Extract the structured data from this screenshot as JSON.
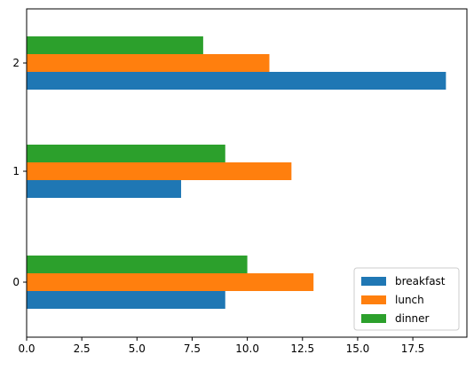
{
  "chart_data": {
    "type": "bar",
    "orientation": "horizontal",
    "title": "",
    "xlabel": "",
    "ylabel": "",
    "categories": [
      "0",
      "1",
      "2"
    ],
    "series": [
      {
        "name": "breakfast",
        "color": "#1f77b4",
        "values": [
          9,
          7,
          19
        ]
      },
      {
        "name": "lunch",
        "color": "#ff7f0e",
        "values": [
          13,
          12,
          11
        ]
      },
      {
        "name": "dinner",
        "color": "#2ca02c",
        "values": [
          10,
          9,
          8
        ]
      }
    ],
    "xlim": [
      0,
      19.95
    ],
    "x_ticks": [
      0,
      2.5,
      5,
      7.5,
      10,
      12.5,
      15,
      17.5
    ],
    "x_tick_labels": [
      "0.0",
      "2.5",
      "5.0",
      "7.5",
      "10.0",
      "12.5",
      "15.0",
      "17.5"
    ],
    "grid": false,
    "legend_position": "lower right"
  }
}
